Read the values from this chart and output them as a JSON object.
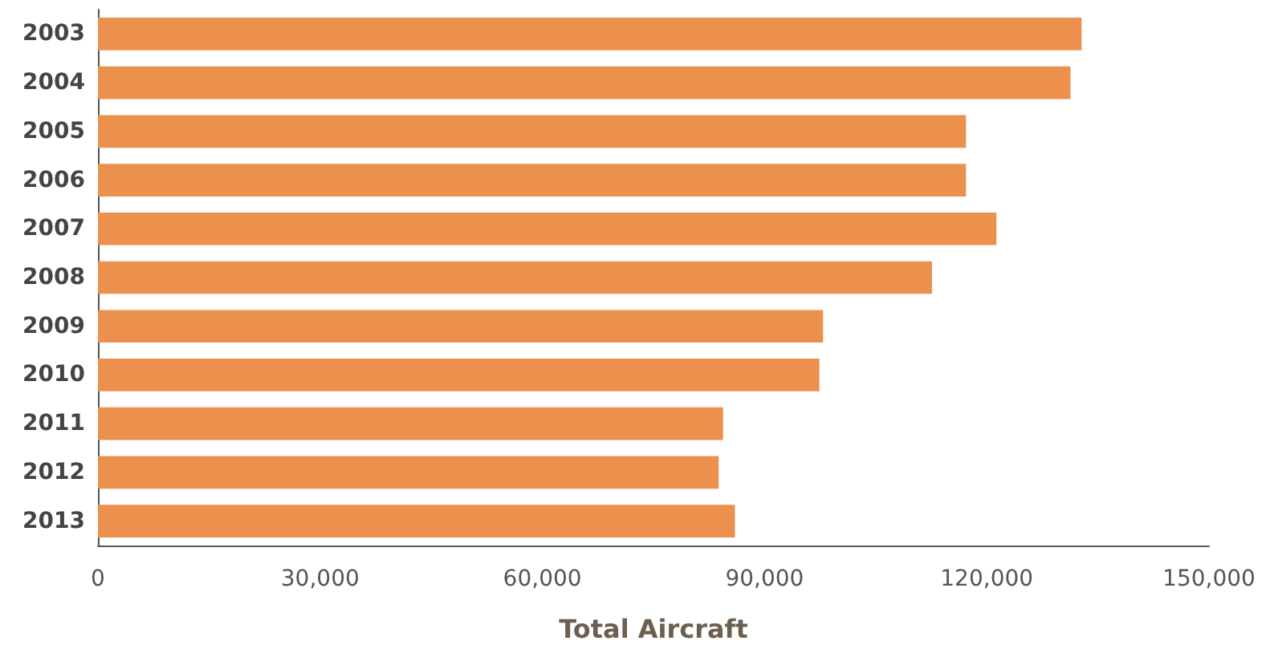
{
  "chart_data": {
    "type": "bar",
    "orientation": "horizontal",
    "xlabel": "Total Aircraft",
    "categories": [
      "2003",
      "2004",
      "2005",
      "2006",
      "2007",
      "2008",
      "2009",
      "2010",
      "2011",
      "2012",
      "2013"
    ],
    "values": [
      132800,
      131300,
      117200,
      117200,
      121300,
      112600,
      97900,
      97400,
      84400,
      83800,
      86000
    ],
    "color": "#eb914d",
    "xlim": [
      0,
      150000
    ],
    "xticks": [
      0,
      {
        "value": 30000,
        "label": "30,000"
      },
      {
        "value": 60000,
        "label": "60,000"
      },
      {
        "value": 90000,
        "label": "90,000"
      },
      {
        "value": 120000,
        "label": "120,000"
      },
      {
        "value": 150000,
        "label": "150,000"
      }
    ],
    "grid": false
  }
}
